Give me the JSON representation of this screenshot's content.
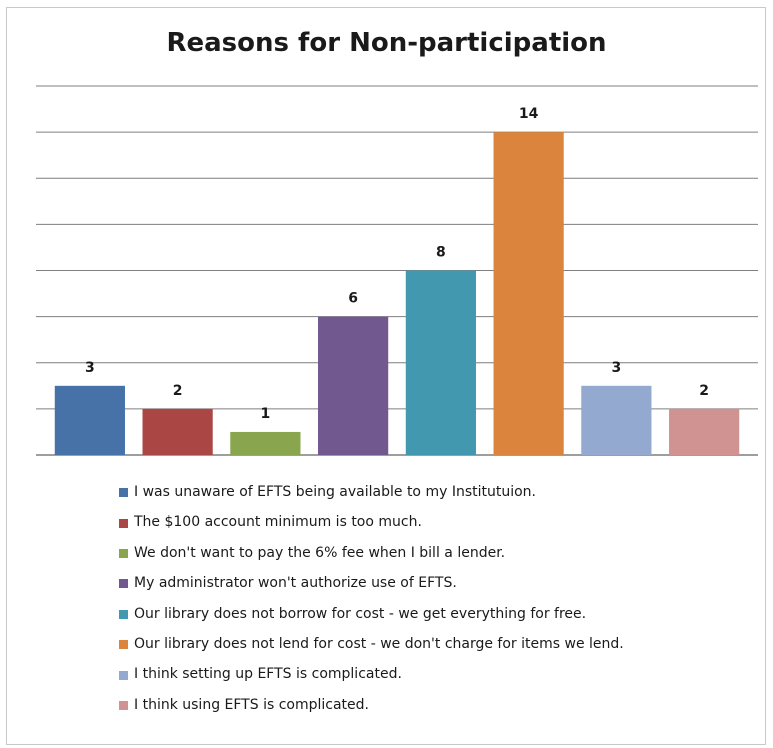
{
  "chart_data": {
    "type": "bar",
    "title": "Reasons for Non-participation",
    "xlabel": "",
    "ylabel": "",
    "ylim": [
      0,
      16
    ],
    "grid": true,
    "legend_position": "bottom",
    "series": [
      {
        "name": "I was unaware of EFTS being available to my Institutuion.",
        "value": 3,
        "color": "#4672A8"
      },
      {
        "name": "The $100 account minimum is too much.",
        "value": 2,
        "color": "#AA4644"
      },
      {
        "name": "We don't want to pay the 6% fee when I bill a lender.",
        "value": 1,
        "color": "#89A54E"
      },
      {
        "name": "My administrator won't authorize use of EFTS.",
        "value": 6,
        "color": "#71588F"
      },
      {
        "name": "Our library does not borrow for cost -  we get everything for free.",
        "value": 8,
        "color": "#4198AF"
      },
      {
        "name": "Our library does not lend for cost - we don't charge for items we lend.",
        "value": 14,
        "color": "#DB843D"
      },
      {
        "name": "I think setting up EFTS is complicated.",
        "value": 3,
        "color": "#93A9CF"
      },
      {
        "name": "I think using EFTS is complicated.",
        "value": 2,
        "color": "#D19392"
      }
    ]
  }
}
